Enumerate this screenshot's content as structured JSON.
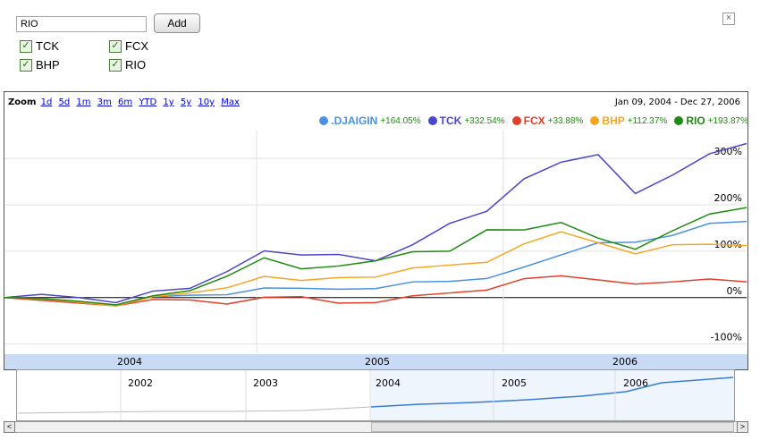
{
  "symbol_input": {
    "value": "RIO"
  },
  "add_label": "Add",
  "close_glyph": "×",
  "checkboxes": [
    {
      "label": "TCK",
      "checked": true
    },
    {
      "label": "FCX",
      "checked": true
    },
    {
      "label": "BHP",
      "checked": true
    },
    {
      "label": "RIO",
      "checked": true
    }
  ],
  "zoom": {
    "label": "Zoom",
    "options": [
      "1d",
      "5d",
      "1m",
      "3m",
      "6m",
      "YTD",
      "1y",
      "5y",
      "10y",
      "Max"
    ]
  },
  "date_range": "Jan 09, 2004 - Dec 27, 2006",
  "legend": [
    {
      "name": ".DJAIGIN",
      "change": "+164.05%",
      "color": "#4a90e2"
    },
    {
      "name": "TCK",
      "change": "+332.54%",
      "color": "#4b45c8"
    },
    {
      "name": "FCX",
      "change": "+33.88%",
      "color": "#e0402a"
    },
    {
      "name": "BHP",
      "change": "+112.37%",
      "color": "#f5a623"
    },
    {
      "name": "RIO",
      "change": "+193.87%",
      "color": "#1f8a12"
    }
  ],
  "y_ticks": [
    "300%",
    "200%",
    "100%",
    "0%",
    "-100%"
  ],
  "year_labels": [
    "2004",
    "2005",
    "2006"
  ],
  "nav_years": [
    "2002",
    "2003",
    "2004",
    "2005",
    "2006"
  ],
  "scroll": {
    "left": "<",
    "right": ">"
  },
  "chart_data": {
    "type": "line",
    "ylim": [
      -120,
      360
    ],
    "x": [
      0,
      0.05,
      0.1,
      0.15,
      0.2,
      0.25,
      0.3,
      0.35,
      0.4,
      0.45,
      0.5,
      0.55,
      0.6,
      0.65,
      0.7,
      0.75,
      0.8,
      0.85,
      0.9,
      0.95,
      1.0
    ],
    "series": [
      {
        "name": ".DJAIGIN",
        "color": "#4a90e2",
        "values": [
          0,
          -5,
          -8,
          -10,
          -2,
          5,
          10,
          15,
          18,
          20,
          25,
          30,
          35,
          45,
          60,
          90,
          120,
          125,
          130,
          160,
          164
        ]
      },
      {
        "name": "TCK",
        "color": "#4b45c8",
        "values": [
          0,
          5,
          2,
          -5,
          10,
          20,
          60,
          95,
          90,
          95,
          85,
          110,
          160,
          190,
          250,
          290,
          310,
          230,
          260,
          310,
          332
        ]
      },
      {
        "name": "FCX",
        "color": "#e0402a",
        "values": [
          0,
          -8,
          -10,
          -12,
          -8,
          -5,
          -10,
          -5,
          0,
          -10,
          -5,
          0,
          10,
          20,
          35,
          45,
          40,
          35,
          30,
          40,
          34
        ]
      },
      {
        "name": "BHP",
        "color": "#f5a623",
        "values": [
          0,
          -5,
          -8,
          -12,
          -2,
          10,
          25,
          40,
          35,
          45,
          50,
          60,
          70,
          80,
          110,
          140,
          120,
          100,
          110,
          115,
          112
        ]
      },
      {
        "name": "RIO",
        "color": "#1f8a12",
        "values": [
          0,
          -4,
          -6,
          -10,
          0,
          15,
          50,
          80,
          60,
          70,
          85,
          95,
          100,
          150,
          140,
          160,
          130,
          110,
          140,
          180,
          194
        ]
      }
    ]
  }
}
